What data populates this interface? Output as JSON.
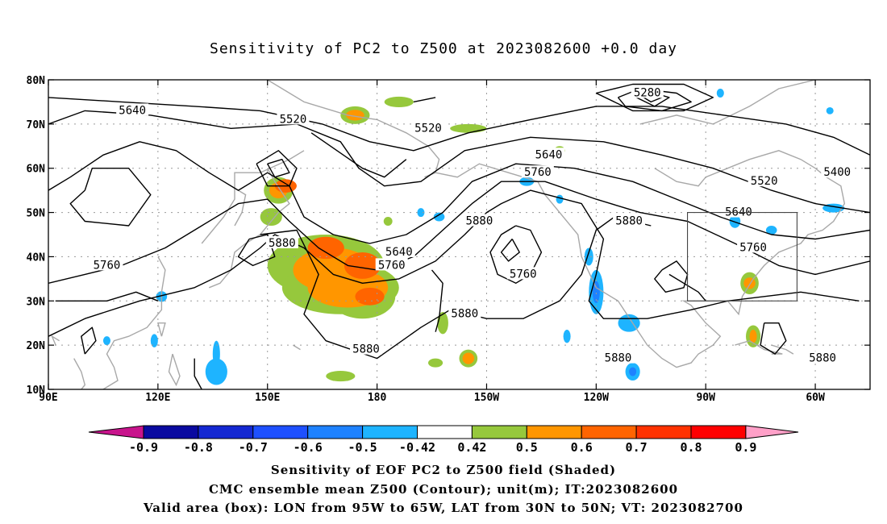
{
  "title": "Sensitivity of PC2 to Z500 at 2023082600 +0.0 day",
  "axes": {
    "lat_labels": [
      "80N",
      "70N",
      "60N",
      "50N",
      "40N",
      "30N",
      "20N",
      "10N"
    ],
    "lat_values": [
      80,
      70,
      60,
      50,
      40,
      30,
      20,
      10
    ],
    "lon_labels": [
      "90E",
      "120E",
      "150E",
      "180",
      "150W",
      "120W",
      "90W",
      "60W"
    ],
    "lon_values": [
      90,
      120,
      150,
      180,
      210,
      240,
      270,
      300
    ],
    "lon_range": [
      90,
      315
    ],
    "lat_range": [
      10,
      80
    ]
  },
  "contour_labels": [
    {
      "text": "5640",
      "lon": 113,
      "lat": 73
    },
    {
      "text": "5520",
      "lon": 157,
      "lat": 71
    },
    {
      "text": "5520",
      "lon": 194,
      "lat": 69
    },
    {
      "text": "5280",
      "lon": 254,
      "lat": 77
    },
    {
      "text": "5640",
      "lon": 227,
      "lat": 63
    },
    {
      "text": "5760",
      "lon": 224,
      "lat": 59
    },
    {
      "text": "5400",
      "lon": 306,
      "lat": 59
    },
    {
      "text": "5520",
      "lon": 286,
      "lat": 57
    },
    {
      "text": "5640",
      "lon": 279,
      "lat": 50
    },
    {
      "text": "5760",
      "lon": 283,
      "lat": 42
    },
    {
      "text": "5880",
      "lon": 208,
      "lat": 48
    },
    {
      "text": "5880",
      "lon": 249,
      "lat": 48
    },
    {
      "text": "5880",
      "lon": 154,
      "lat": 43
    },
    {
      "text": "5640",
      "lon": 186,
      "lat": 41
    },
    {
      "text": "5760",
      "lon": 184,
      "lat": 38
    },
    {
      "text": "5760",
      "lon": 106,
      "lat": 38
    },
    {
      "text": "5760",
      "lon": 220,
      "lat": 36
    },
    {
      "text": "5880",
      "lon": 204,
      "lat": 27
    },
    {
      "text": "5880",
      "lon": 177,
      "lat": 19
    },
    {
      "text": "5880",
      "lon": 246,
      "lat": 17
    },
    {
      "text": "5880",
      "lon": 302,
      "lat": 17
    }
  ],
  "colorbar": {
    "labels": [
      "-0.9",
      "-0.8",
      "-0.7",
      "-0.6",
      "-0.5",
      "-0.42",
      "0.42",
      "0.5",
      "0.6",
      "0.7",
      "0.8",
      "0.9"
    ],
    "colors": [
      "#0a0aa0",
      "#1428d2",
      "#1e50ff",
      "#1e82ff",
      "#1eb4ff",
      "#ffffff",
      "#96c83c",
      "#ff9600",
      "#ff6400",
      "#ff3200",
      "#ff0000"
    ],
    "low_end_color": "#c8148c",
    "high_end_color": "#ffa0c8"
  },
  "valid_box": {
    "lon_min": 265,
    "lon_max": 295,
    "lat_min": 30,
    "lat_max": 50
  },
  "captions": [
    "Sensitivity of EOF PC2 to Z500 field (Shaded)",
    "CMC ensemble mean Z500 (Contour); unit(m); IT:2023082600",
    "Valid area (box): LON from 95W to 65W, LAT from 30N to 50N; VT: 2023082700"
  ],
  "colors": {
    "positive": "#96c83c",
    "positive_strong": "#ff9600",
    "positive_stronger": "#ff6400",
    "negative": "#1eb4ff",
    "negative_strong": "#1e82ff",
    "coast": "#a8a8a8",
    "grid": "#9a9a9a"
  }
}
